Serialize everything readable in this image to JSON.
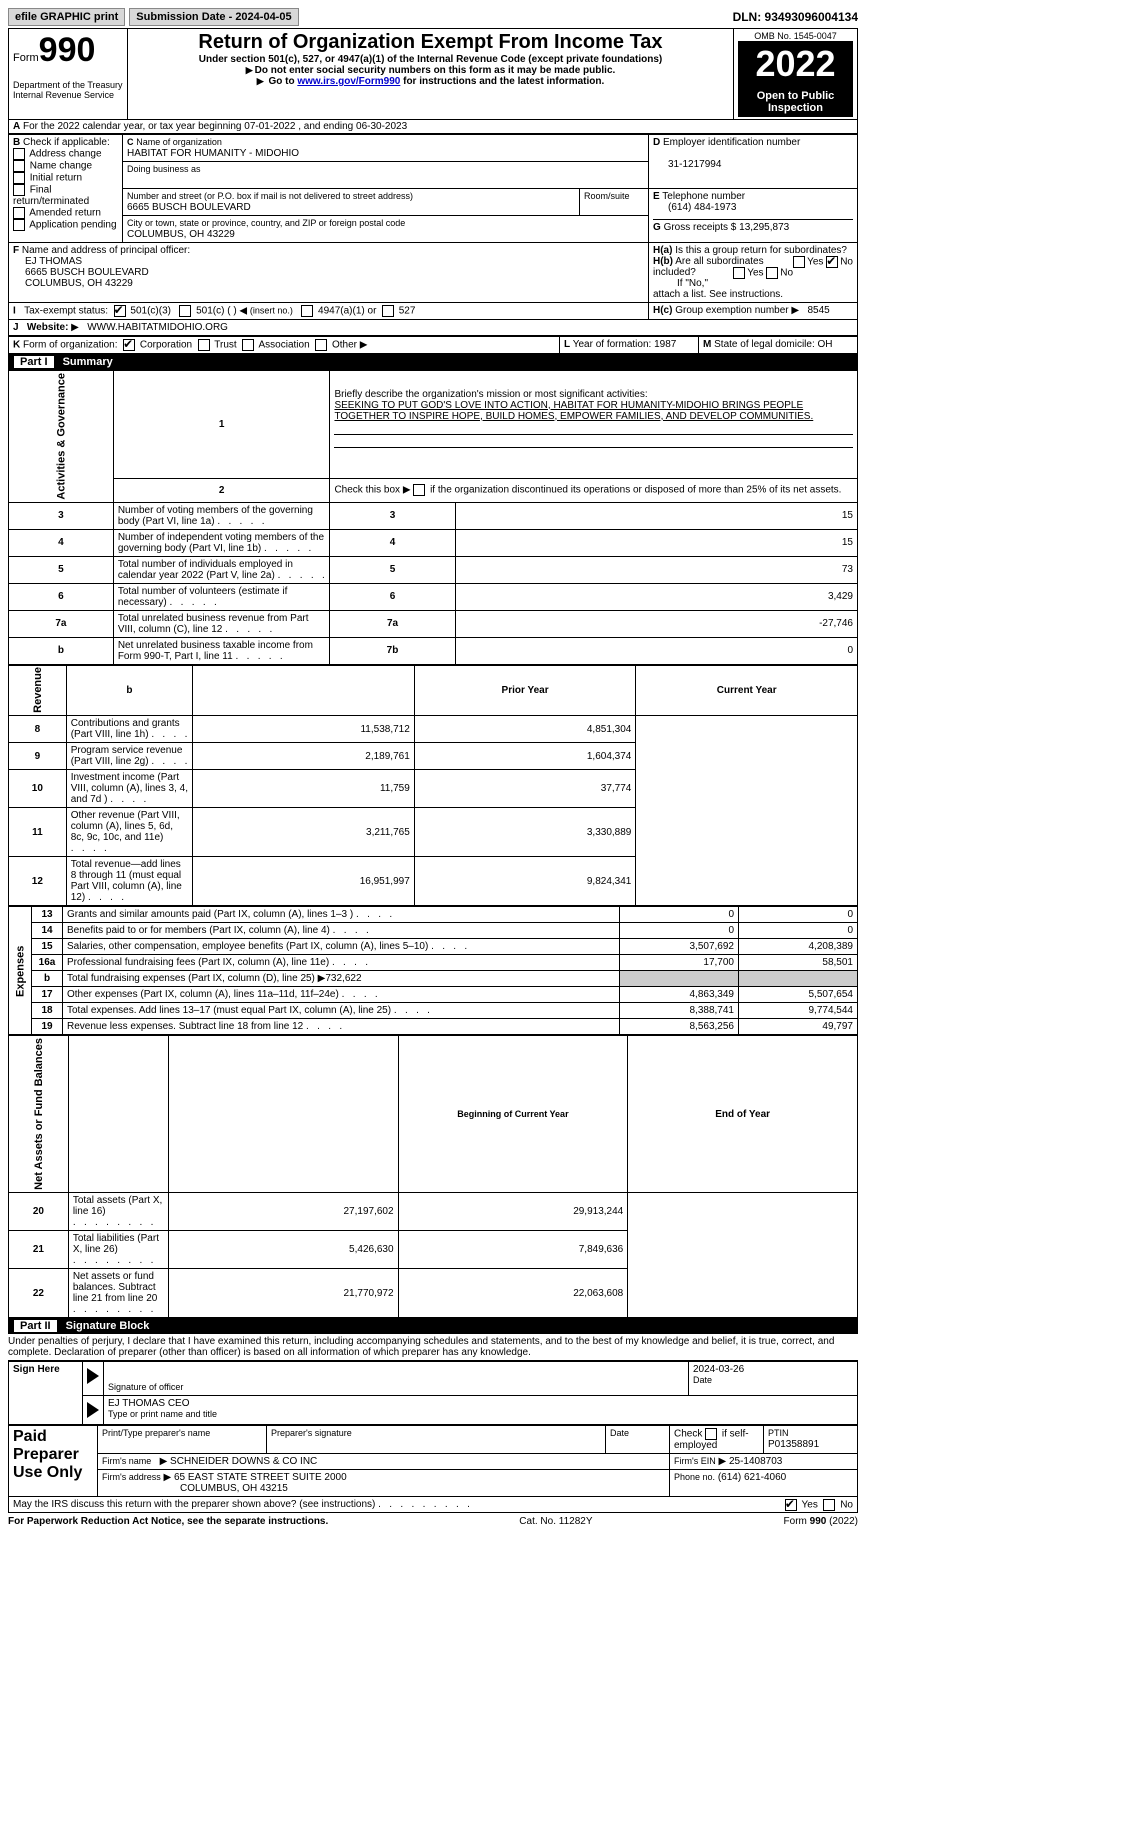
{
  "topbar": {
    "efile": "efile GRAPHIC print",
    "submission": "Submission Date - 2024-04-05",
    "dln": "DLN: 93493096004134"
  },
  "header": {
    "form_label": "Form",
    "form_number": "990",
    "dept": "Department of the Treasury",
    "irs": "Internal Revenue Service",
    "title": "Return of Organization Exempt From Income Tax",
    "sub1": "Under section 501(c), 527, or 4947(a)(1) of the Internal Revenue Code (except private foundations)",
    "sub2": "Do not enter social security numbers on this form as it may be made public.",
    "sub3_pre": "Go to ",
    "sub3_link": "www.irs.gov/Form990",
    "sub3_post": " for instructions and the latest information.",
    "omb": "OMB No. 1545-0047",
    "year": "2022",
    "inspect": "Open to Public Inspection"
  },
  "lineA": "For the 2022 calendar year, or tax year beginning 07-01-2022    , and ending 06-30-2023",
  "boxB": {
    "label": "Check if applicable:",
    "items": [
      "Address change",
      "Name change",
      "Initial return",
      "Final return/terminated",
      "Amended return",
      "Application pending"
    ]
  },
  "boxC": {
    "label": "Name of organization",
    "name": "HABITAT FOR HUMANITY - MIDOHIO",
    "dba": "Doing business as",
    "street_label": "Number and street (or P.O. box if mail is not delivered to street address)",
    "room_label": "Room/suite",
    "street": "6665 BUSCH BOULEVARD",
    "city_label": "City or town, state or province, country, and ZIP or foreign postal code",
    "city": "COLUMBUS, OH  43229"
  },
  "boxD": {
    "label": "Employer identification number",
    "val": "31-1217994"
  },
  "boxE": {
    "label": "Telephone number",
    "val": "(614) 484-1973"
  },
  "boxG": {
    "label": "Gross receipts $",
    "val": "13,295,873"
  },
  "boxF": {
    "label": "Name and address of principal officer:",
    "name": "EJ THOMAS",
    "addr1": "6665 BUSCH BOULEVARD",
    "addr2": "COLUMBUS, OH  43229"
  },
  "boxH": {
    "a": "Is this a group return for subordinates?",
    "b": "Are all subordinates included?",
    "note": "If \"No,\" attach a list. See instructions.",
    "c": "Group exemption number",
    "cval": "8545",
    "yes": "Yes",
    "no": "No"
  },
  "boxI": {
    "label": "Tax-exempt status:",
    "o1": "501(c)(3)",
    "o2": "501(c) (   )",
    "o2b": "(insert no.)",
    "o3": "4947(a)(1) or",
    "o4": "527"
  },
  "boxJ": {
    "label": "Website:",
    "val": "WWW.HABITATMIDOHIO.ORG"
  },
  "boxK": {
    "label": "Form of organization:",
    "o1": "Corporation",
    "o2": "Trust",
    "o3": "Association",
    "o4": "Other"
  },
  "boxL": {
    "label": "Year of formation:",
    "val": "1987"
  },
  "boxM": {
    "label": "State of legal domicile:",
    "val": "OH"
  },
  "part1": {
    "bar_part": "Part I",
    "bar_title": "Summary"
  },
  "summary": {
    "side_ag": "Activities & Governance",
    "side_rev": "Revenue",
    "side_exp": "Expenses",
    "side_net": "Net Assets or Fund Balances",
    "l1": "Briefly describe the organization's mission or most significant activities:",
    "mission": "SEEKING TO PUT GOD'S LOVE INTO ACTION, HABITAT FOR HUMANITY-MIDOHIO BRINGS PEOPLE TOGETHER TO INSPIRE HOPE, BUILD HOMES, EMPOWER FAMILIES, AND DEVELOP COMMUNITIES.",
    "l2": "Check this box ▶ if the organization discontinued its operations or disposed of more than 25% of its net assets.",
    "rows_ag": [
      {
        "n": "3",
        "t": "Number of voting members of the governing body (Part VI, line 1a)",
        "c": "3",
        "v": "15"
      },
      {
        "n": "4",
        "t": "Number of independent voting members of the governing body (Part VI, line 1b)",
        "c": "4",
        "v": "15"
      },
      {
        "n": "5",
        "t": "Total number of individuals employed in calendar year 2022 (Part V, line 2a)",
        "c": "5",
        "v": "73"
      },
      {
        "n": "6",
        "t": "Total number of volunteers (estimate if necessary)",
        "c": "6",
        "v": "3,429"
      },
      {
        "n": "7a",
        "t": "Total unrelated business revenue from Part VIII, column (C), line 12",
        "c": "7a",
        "v": "-27,746"
      },
      {
        "n": "b",
        "t": "Net unrelated business taxable income from Form 990-T, Part I, line 11",
        "c": "7b",
        "v": "0"
      }
    ],
    "col_prior": "Prior Year",
    "col_cur": "Current Year",
    "rows_rev": [
      {
        "n": "8",
        "t": "Contributions and grants (Part VIII, line 1h)",
        "p": "11,538,712",
        "c": "4,851,304"
      },
      {
        "n": "9",
        "t": "Program service revenue (Part VIII, line 2g)",
        "p": "2,189,761",
        "c": "1,604,374"
      },
      {
        "n": "10",
        "t": "Investment income (Part VIII, column (A), lines 3, 4, and 7d )",
        "p": "11,759",
        "c": "37,774"
      },
      {
        "n": "11",
        "t": "Other revenue (Part VIII, column (A), lines 5, 6d, 8c, 9c, 10c, and 11e)",
        "p": "3,211,765",
        "c": "3,330,889"
      },
      {
        "n": "12",
        "t": "Total revenue—add lines 8 through 11 (must equal Part VIII, column (A), line 12)",
        "p": "16,951,997",
        "c": "9,824,341"
      }
    ],
    "rows_exp": [
      {
        "n": "13",
        "t": "Grants and similar amounts paid (Part IX, column (A), lines 1–3 )",
        "p": "0",
        "c": "0"
      },
      {
        "n": "14",
        "t": "Benefits paid to or for members (Part IX, column (A), line 4)",
        "p": "0",
        "c": "0"
      },
      {
        "n": "15",
        "t": "Salaries, other compensation, employee benefits (Part IX, column (A), lines 5–10)",
        "p": "3,507,692",
        "c": "4,208,389"
      },
      {
        "n": "16a",
        "t": "Professional fundraising fees (Part IX, column (A), line 11e)",
        "p": "17,700",
        "c": "58,501"
      },
      {
        "n": "b",
        "t": "Total fundraising expenses (Part IX, column (D), line 25) ▶732,622",
        "shade": true
      },
      {
        "n": "17",
        "t": "Other expenses (Part IX, column (A), lines 11a–11d, 11f–24e)",
        "p": "4,863,349",
        "c": "5,507,654"
      },
      {
        "n": "18",
        "t": "Total expenses. Add lines 13–17 (must equal Part IX, column (A), line 25)",
        "p": "8,388,741",
        "c": "9,774,544"
      },
      {
        "n": "19",
        "t": "Revenue less expenses. Subtract line 18 from line 12",
        "p": "8,563,256",
        "c": "49,797"
      }
    ],
    "col_boc": "Beginning of Current Year",
    "col_eoy": "End of Year",
    "rows_net": [
      {
        "n": "20",
        "t": "Total assets (Part X, line 16)",
        "p": "27,197,602",
        "c": "29,913,244"
      },
      {
        "n": "21",
        "t": "Total liabilities (Part X, line 26)",
        "p": "5,426,630",
        "c": "7,849,636"
      },
      {
        "n": "22",
        "t": "Net assets or fund balances. Subtract line 21 from line 20",
        "p": "21,770,972",
        "c": "22,063,608"
      }
    ]
  },
  "part2": {
    "bar_part": "Part II",
    "bar_title": "Signature Block",
    "decl": "Under penalties of perjury, I declare that I have examined this return, including accompanying schedules and statements, and to the best of my knowledge and belief, it is true, correct, and complete. Declaration of preparer (other than officer) is based on all information of which preparer has any knowledge."
  },
  "sign": {
    "side": "Sign Here",
    "sig_of": "Signature of officer",
    "date_label": "Date",
    "date": "2024-03-26",
    "name": "EJ THOMAS CEO",
    "name_label": "Type or print name and title"
  },
  "prep": {
    "side": "Paid Preparer Use Only",
    "h1": "Print/Type preparer's name",
    "h2": "Preparer's signature",
    "h3": "Date",
    "h4": "Check         if self-employed",
    "h5": "PTIN",
    "ptin": "P01358891",
    "firm": "Firm's name",
    "firm_v": "SCHNEIDER DOWNS & CO INC",
    "ein": "Firm's EIN",
    "ein_v": "25-1408703",
    "addr": "Firm's address",
    "addr_v": "65 EAST STATE STREET SUITE 2000",
    "addr_v2": "COLUMBUS, OH  43215",
    "phone": "Phone no.",
    "phone_v": "(614) 621-4060"
  },
  "discuss": "May the IRS discuss this return with the preparer shown above? (see instructions)",
  "footer": {
    "l": "For Paperwork Reduction Act Notice, see the separate instructions.",
    "m": "Cat. No. 11282Y",
    "r": "Form 990 (2022)"
  }
}
